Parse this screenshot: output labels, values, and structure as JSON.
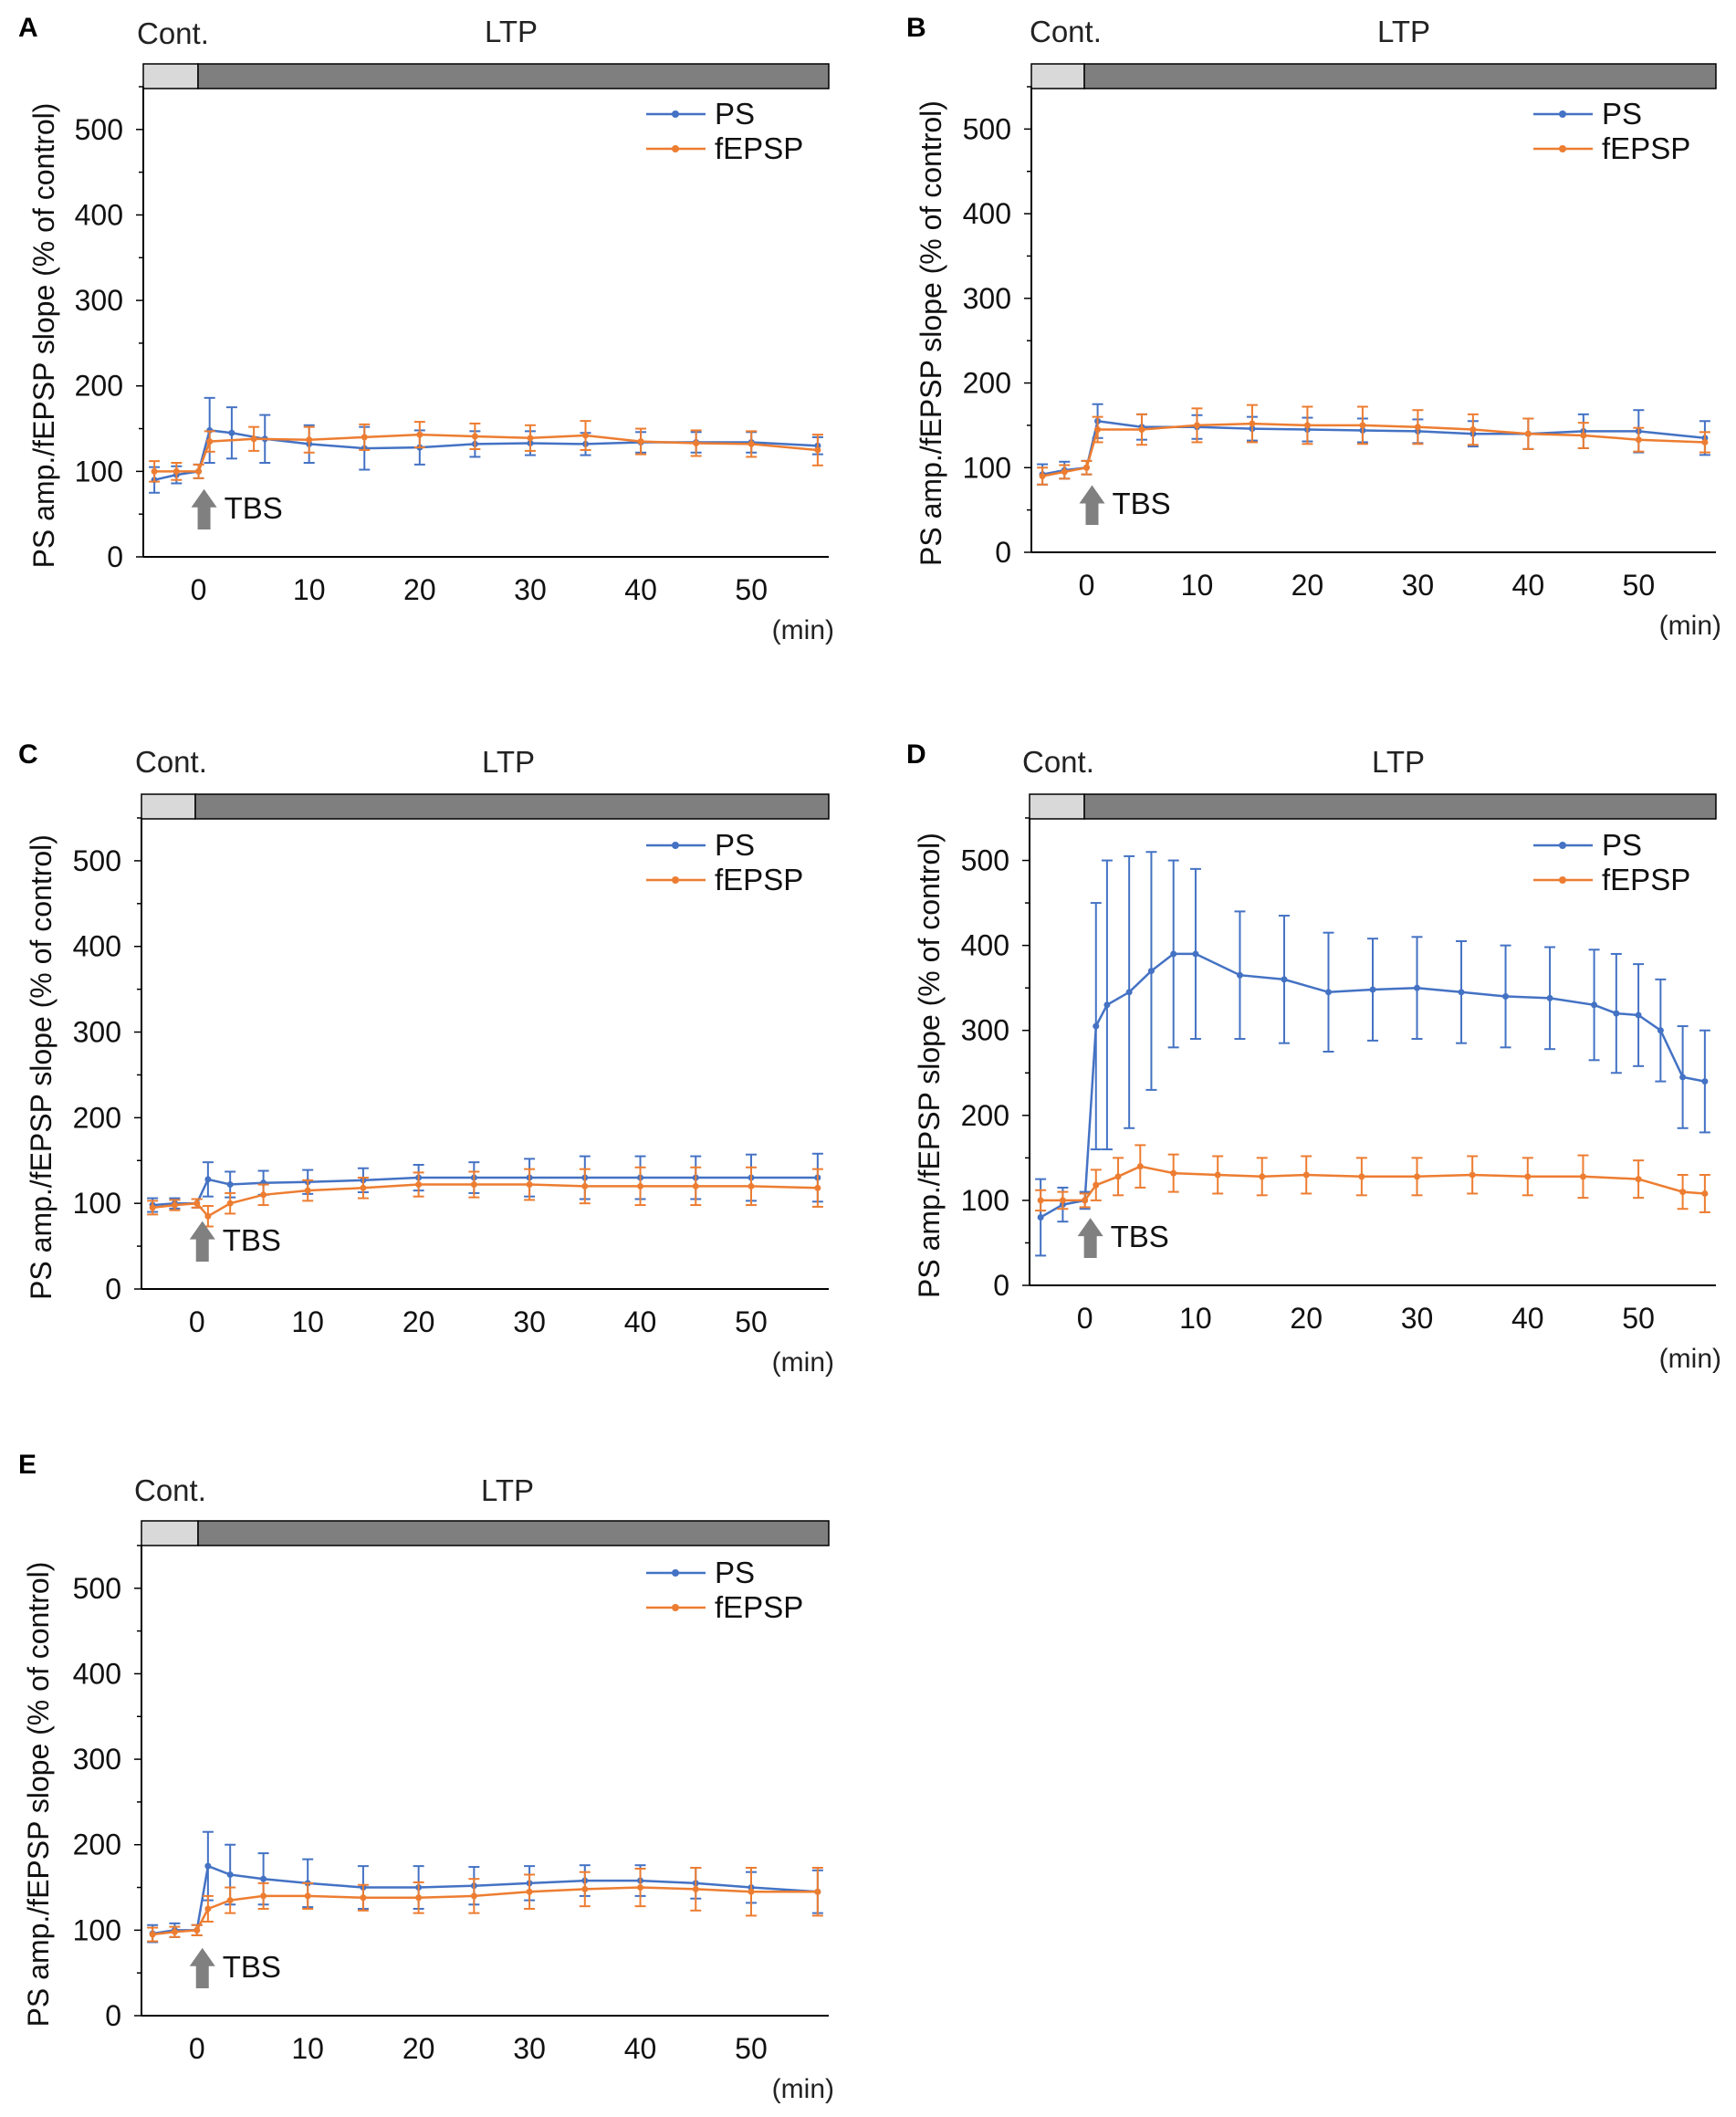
{
  "colors": {
    "ps": "#4472C4",
    "fepsp": "#ED7D31",
    "cont_bar": "#d9d9d9",
    "ltp_bar": "#7f7f7f",
    "arrow": "#808080",
    "axis": "#000000"
  },
  "chart_data": [
    {
      "id": "A",
      "panel_label": "A",
      "type": "line",
      "phase_labels": {
        "control": "Cont.",
        "ltp": "LTP"
      },
      "ylabel": "PS amp./fEPSP slope (% of control)",
      "unit_label": "(min)",
      "stimulus_label": "TBS",
      "stimulus_time": 0,
      "xlim": [
        -5,
        57
      ],
      "ylim": [
        0,
        550
      ],
      "x_ticks": [
        0,
        10,
        20,
        30,
        40,
        50
      ],
      "y_ticks": [
        0,
        100,
        200,
        300,
        400,
        500
      ],
      "series": [
        {
          "name": "PS",
          "color": "#4472C4",
          "points": [
            [
              -4,
              90,
              15
            ],
            [
              -2,
              96,
              10
            ],
            [
              0,
              100,
              8
            ],
            [
              1,
              148,
              38
            ],
            [
              3,
              145,
              30
            ],
            [
              6,
              138,
              28
            ],
            [
              10,
              132,
              22
            ],
            [
              15,
              127,
              25
            ],
            [
              20,
              128,
              20
            ],
            [
              25,
              132,
              15
            ],
            [
              30,
              133,
              14
            ],
            [
              35,
              132,
              13
            ],
            [
              40,
              134,
              12
            ],
            [
              45,
              134,
              12
            ],
            [
              50,
              134,
              12
            ],
            [
              56,
              130,
              10
            ]
          ]
        },
        {
          "name": "fEPSP",
          "color": "#ED7D31",
          "points": [
            [
              -4,
              100,
              12
            ],
            [
              -2,
              100,
              10
            ],
            [
              0,
              100,
              8
            ],
            [
              1,
              135,
              12
            ],
            [
              5,
              138,
              14
            ],
            [
              10,
              137,
              15
            ],
            [
              15,
              140,
              15
            ],
            [
              20,
              143,
              15
            ],
            [
              25,
              141,
              15
            ],
            [
              30,
              139,
              15
            ],
            [
              35,
              142,
              17
            ],
            [
              40,
              135,
              15
            ],
            [
              45,
              133,
              15
            ],
            [
              50,
              132,
              15
            ],
            [
              56,
              125,
              18
            ]
          ]
        }
      ]
    },
    {
      "id": "B",
      "panel_label": "B",
      "type": "line",
      "phase_labels": {
        "control": "Cont.",
        "ltp": "LTP"
      },
      "ylabel": "PS amp./fEPSP slope (% of control)",
      "unit_label": "(min)",
      "stimulus_label": "TBS",
      "stimulus_time": 0,
      "xlim": [
        -5,
        57
      ],
      "ylim": [
        0,
        550
      ],
      "x_ticks": [
        0,
        10,
        20,
        30,
        40,
        50
      ],
      "y_ticks": [
        0,
        100,
        200,
        300,
        400,
        500
      ],
      "series": [
        {
          "name": "PS",
          "color": "#4472C4",
          "points": [
            [
              -4,
              92,
              12
            ],
            [
              -2,
              97,
              10
            ],
            [
              0,
              100,
              8
            ],
            [
              1,
              155,
              20
            ],
            [
              5,
              148,
              15
            ],
            [
              10,
              148,
              14
            ],
            [
              15,
              146,
              14
            ],
            [
              20,
              145,
              14
            ],
            [
              25,
              144,
              14
            ],
            [
              30,
              143,
              14
            ],
            [
              35,
              140,
              15
            ],
            [
              40,
              140,
              18
            ],
            [
              45,
              143,
              20
            ],
            [
              50,
              143,
              25
            ],
            [
              56,
              135,
              20
            ]
          ]
        },
        {
          "name": "fEPSP",
          "color": "#ED7D31",
          "points": [
            [
              -4,
              90,
              10
            ],
            [
              -2,
              95,
              8
            ],
            [
              0,
              100,
              8
            ],
            [
              1,
              145,
              15
            ],
            [
              5,
              145,
              18
            ],
            [
              10,
              150,
              20
            ],
            [
              15,
              152,
              22
            ],
            [
              20,
              150,
              22
            ],
            [
              25,
              150,
              22
            ],
            [
              30,
              148,
              20
            ],
            [
              35,
              145,
              18
            ],
            [
              40,
              140,
              18
            ],
            [
              45,
              138,
              15
            ],
            [
              50,
              133,
              14
            ],
            [
              56,
              130,
              12
            ]
          ]
        }
      ]
    },
    {
      "id": "C",
      "panel_label": "C",
      "type": "line",
      "phase_labels": {
        "control": "Cont.",
        "ltp": "LTP"
      },
      "ylabel": "PS amp./fEPSP slope (% of control)",
      "unit_label": "(min)",
      "stimulus_label": "TBS",
      "stimulus_time": 0,
      "xlim": [
        -5,
        57
      ],
      "ylim": [
        0,
        550
      ],
      "x_ticks": [
        0,
        10,
        20,
        30,
        40,
        50
      ],
      "y_ticks": [
        0,
        100,
        200,
        300,
        400,
        500
      ],
      "series": [
        {
          "name": "PS",
          "color": "#4472C4",
          "points": [
            [
              -4,
              98,
              8
            ],
            [
              -2,
              100,
              6
            ],
            [
              0,
              100,
              5
            ],
            [
              1,
              128,
              20
            ],
            [
              3,
              122,
              15
            ],
            [
              6,
              124,
              14
            ],
            [
              10,
              125,
              14
            ],
            [
              15,
              127,
              14
            ],
            [
              20,
              130,
              15
            ],
            [
              25,
              130,
              18
            ],
            [
              30,
              130,
              22
            ],
            [
              35,
              130,
              25
            ],
            [
              40,
              130,
              25
            ],
            [
              45,
              130,
              25
            ],
            [
              50,
              130,
              27
            ],
            [
              56,
              130,
              28
            ]
          ]
        },
        {
          "name": "fEPSP",
          "color": "#ED7D31",
          "points": [
            [
              -4,
              95,
              8
            ],
            [
              -2,
              98,
              6
            ],
            [
              0,
              100,
              5
            ],
            [
              1,
              85,
              12
            ],
            [
              3,
              100,
              12
            ],
            [
              6,
              110,
              12
            ],
            [
              10,
              115,
              12
            ],
            [
              15,
              118,
              12
            ],
            [
              20,
              122,
              14
            ],
            [
              25,
              122,
              15
            ],
            [
              30,
              122,
              18
            ],
            [
              35,
              120,
              20
            ],
            [
              40,
              120,
              22
            ],
            [
              45,
              120,
              22
            ],
            [
              50,
              120,
              22
            ],
            [
              56,
              118,
              22
            ]
          ]
        }
      ]
    },
    {
      "id": "D",
      "panel_label": "D",
      "type": "line",
      "phase_labels": {
        "control": "Cont.",
        "ltp": "LTP"
      },
      "ylabel": "PS amp./fEPSP slope (% of control)",
      "unit_label": "(min)",
      "stimulus_label": "TBS",
      "stimulus_time": 0,
      "xlim": [
        -5,
        57
      ],
      "ylim": [
        0,
        550
      ],
      "x_ticks": [
        0,
        10,
        20,
        30,
        40,
        50
      ],
      "y_ticks": [
        0,
        100,
        200,
        300,
        400,
        500
      ],
      "series": [
        {
          "name": "PS",
          "color": "#4472C4",
          "points": [
            [
              -4,
              80,
              45
            ],
            [
              -2,
              95,
              20
            ],
            [
              0,
              100,
              10
            ],
            [
              1,
              305,
              145
            ],
            [
              2,
              330,
              170
            ],
            [
              4,
              345,
              160
            ],
            [
              6,
              370,
              140
            ],
            [
              8,
              390,
              110
            ],
            [
              10,
              390,
              100
            ],
            [
              14,
              365,
              75
            ],
            [
              18,
              360,
              75
            ],
            [
              22,
              345,
              70
            ],
            [
              26,
              348,
              60
            ],
            [
              30,
              350,
              60
            ],
            [
              34,
              345,
              60
            ],
            [
              38,
              340,
              60
            ],
            [
              42,
              338,
              60
            ],
            [
              46,
              330,
              65
            ],
            [
              48,
              320,
              70
            ],
            [
              50,
              318,
              60
            ],
            [
              52,
              300,
              60
            ],
            [
              54,
              245,
              60
            ],
            [
              56,
              240,
              60
            ]
          ]
        },
        {
          "name": "fEPSP",
          "color": "#ED7D31",
          "points": [
            [
              -4,
              100,
              12
            ],
            [
              -2,
              100,
              10
            ],
            [
              0,
              100,
              8
            ],
            [
              1,
              118,
              18
            ],
            [
              3,
              128,
              22
            ],
            [
              5,
              140,
              25
            ],
            [
              8,
              132,
              22
            ],
            [
              12,
              130,
              22
            ],
            [
              16,
              128,
              22
            ],
            [
              20,
              130,
              22
            ],
            [
              25,
              128,
              22
            ],
            [
              30,
              128,
              22
            ],
            [
              35,
              130,
              22
            ],
            [
              40,
              128,
              22
            ],
            [
              45,
              128,
              25
            ],
            [
              50,
              125,
              22
            ],
            [
              54,
              110,
              20
            ],
            [
              56,
              108,
              22
            ]
          ]
        }
      ]
    },
    {
      "id": "E",
      "panel_label": "E",
      "type": "line",
      "phase_labels": {
        "control": "Cont.",
        "ltp": "LTP"
      },
      "ylabel": "PS amp./fEPSP slope (% of control)",
      "unit_label": "(min)",
      "stimulus_label": "TBS",
      "stimulus_time": 0,
      "xlim": [
        -5,
        57
      ],
      "ylim": [
        0,
        550
      ],
      "x_ticks": [
        0,
        10,
        20,
        30,
        40,
        50
      ],
      "y_ticks": [
        0,
        100,
        200,
        300,
        400,
        500
      ],
      "series": [
        {
          "name": "PS",
          "color": "#4472C4",
          "points": [
            [
              -4,
              96,
              10
            ],
            [
              -2,
              100,
              8
            ],
            [
              0,
              100,
              6
            ],
            [
              1,
              175,
              40
            ],
            [
              3,
              165,
              35
            ],
            [
              6,
              160,
              30
            ],
            [
              10,
              155,
              28
            ],
            [
              15,
              150,
              25
            ],
            [
              20,
              150,
              25
            ],
            [
              25,
              152,
              22
            ],
            [
              30,
              155,
              20
            ],
            [
              35,
              158,
              18
            ],
            [
              40,
              158,
              18
            ],
            [
              45,
              155,
              18
            ],
            [
              50,
              150,
              18
            ],
            [
              56,
              145,
              25
            ]
          ]
        },
        {
          "name": "fEPSP",
          "color": "#ED7D31",
          "points": [
            [
              -4,
              95,
              8
            ],
            [
              -2,
              98,
              6
            ],
            [
              0,
              100,
              6
            ],
            [
              1,
              125,
              15
            ],
            [
              3,
              135,
              15
            ],
            [
              6,
              140,
              15
            ],
            [
              10,
              140,
              15
            ],
            [
              15,
              138,
              15
            ],
            [
              20,
              138,
              18
            ],
            [
              25,
              140,
              20
            ],
            [
              30,
              145,
              20
            ],
            [
              35,
              148,
              20
            ],
            [
              40,
              150,
              22
            ],
            [
              45,
              148,
              25
            ],
            [
              50,
              145,
              28
            ],
            [
              56,
              145,
              28
            ]
          ]
        }
      ]
    }
  ]
}
